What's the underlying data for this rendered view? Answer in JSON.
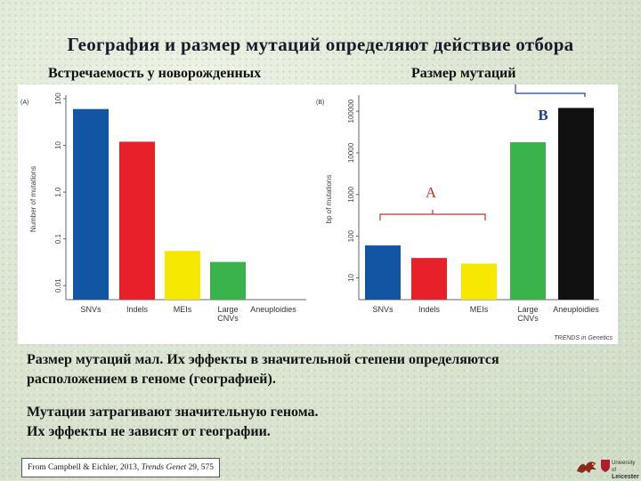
{
  "title": "География и размер мутаций определяют действие отбора",
  "subtitle_left": "Встречаемость у новорожденных",
  "subtitle_right": "Размер мутаций",
  "annotation_a": "A",
  "annotation_b": "B",
  "para1_line1": "Размер мутаций мал. Их эффекты в значительной степени определяются",
  "para1_line2": "расположением в геноме (географией).",
  "para2_line1": "Мутации затрагивают значительную генома.",
  "para2_line2": "Их эффекты не зависят от географии.",
  "citation_prefix": "From Campbell & Eichler, 2013, ",
  "citation_journal": "Trends Genet",
  "citation_suffix": " 29, 575",
  "logo_text_1": "University of",
  "logo_text_2": "Leicester",
  "colors": {
    "blue": "#1155a3",
    "red": "#e8202a",
    "yellow": "#f7e800",
    "green": "#39b34a",
    "black": "#111111",
    "annot": "#c0362c"
  },
  "chart_data": [
    {
      "type": "bar",
      "panel_label": "(A)",
      "ylabel": "Number of mutations",
      "yscale": "log",
      "ylim": [
        0.005,
        100
      ],
      "yticks": [
        "0.01",
        "0.1",
        "1.0",
        "10",
        "100"
      ],
      "categories": [
        "SNVs",
        "Indels",
        "MEIs",
        "Large CNVs",
        "Aneuploidies"
      ],
      "category_labels": [
        [
          "SNVs"
        ],
        [
          "Indels"
        ],
        [
          "MEIs"
        ],
        [
          "Large",
          "CNVs"
        ],
        [
          "Aneuploidies"
        ]
      ],
      "values": [
        60,
        12,
        0.055,
        0.032,
        0.0045
      ],
      "colors": [
        "#1155a3",
        "#e8202a",
        "#f7e800",
        "#39b34a",
        "#111111"
      ]
    },
    {
      "type": "bar",
      "panel_label": "(B)",
      "ylabel": "bp of mutations",
      "yscale": "log",
      "ylim": [
        3,
        200000
      ],
      "yticks": [
        "10",
        "100",
        "1000",
        "10000",
        "100000"
      ],
      "categories": [
        "SNVs",
        "Indels",
        "MEIs",
        "Large CNVs",
        "Aneuploidies"
      ],
      "category_labels": [
        [
          "SNVs"
        ],
        [
          "Indels"
        ],
        [
          "MEIs"
        ],
        [
          "Large",
          "CNVs"
        ],
        [
          "Aneuploidies"
        ]
      ],
      "values": [
        60,
        30,
        22,
        18000,
        120000
      ],
      "colors": [
        "#1155a3",
        "#e8202a",
        "#f7e800",
        "#39b34a",
        "#111111"
      ],
      "source": "TRENDS in Genetics"
    }
  ]
}
